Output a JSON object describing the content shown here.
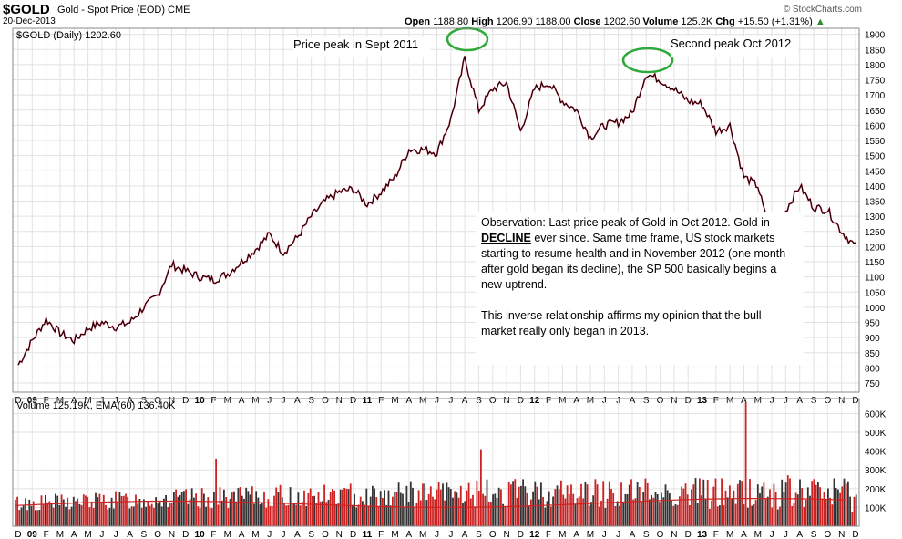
{
  "header": {
    "symbol": "$GOLD",
    "name": "Gold - Spot Price (EOD)",
    "exchange": "CME",
    "date": "20-Dec-2013",
    "open_label": "Open",
    "open": "1188.80",
    "high_label": "High",
    "high": "1206.90",
    "low": "1188.00",
    "close_label": "Close",
    "close": "1202.60",
    "volume_label": "Volume",
    "volume": "125.2K",
    "chg_label": "Chg",
    "chg": "+15.50 (+1.31%)",
    "brand": "© StockCharts.com",
    "up_color": "#2e8b2e"
  },
  "price_legend": "$GOLD (Daily) 1202.60",
  "volume_legend": "Volume 125.19K, EMA(60) 136.40K",
  "annotations": {
    "peak1": "Price peak in Sept 2011",
    "peak2": "Second peak Oct 2012",
    "obs_p1_a": "Observation:  Last price peak of Gold in Oct 2012.  Gold in",
    "obs_p1_b": "DECLINE",
    "obs_p1_c": "ever since.  Same time frame, US stock markets starting to resume health and in November 2012 (one month after gold began its decline), the SP 500 basically begins a new uptrend.",
    "obs_p2": "This inverse relationship affirms my opinion that the bull market really only began in 2013.",
    "highlight_color": "#2eaa3a"
  },
  "chart_data": [
    {
      "type": "line",
      "title": "$GOLD (Daily) 1202.60",
      "x_axis_labels": [
        "D",
        "09",
        "F",
        "M",
        "A",
        "M",
        "J",
        "J",
        "A",
        "S",
        "O",
        "N",
        "D",
        "10",
        "F",
        "M",
        "A",
        "M",
        "J",
        "J",
        "A",
        "S",
        "O",
        "N",
        "D",
        "11",
        "F",
        "M",
        "A",
        "M",
        "J",
        "J",
        "A",
        "S",
        "O",
        "N",
        "D",
        "12",
        "F",
        "M",
        "A",
        "M",
        "J",
        "J",
        "A",
        "S",
        "O",
        "N",
        "D",
        "13",
        "F",
        "M",
        "A",
        "M",
        "J",
        "J",
        "A",
        "S",
        "O",
        "N",
        "D"
      ],
      "y_ticks": [
        750,
        800,
        850,
        900,
        950,
        1000,
        1050,
        1100,
        1150,
        1200,
        1250,
        1300,
        1350,
        1400,
        1450,
        1500,
        1550,
        1600,
        1650,
        1700,
        1750,
        1800,
        1850,
        1900
      ],
      "ylim": [
        720,
        1920
      ],
      "x": [
        "2008-12",
        "2009-01",
        "2009-02",
        "2009-03",
        "2009-04",
        "2009-05",
        "2009-06",
        "2009-07",
        "2009-08",
        "2009-09",
        "2009-10",
        "2009-11",
        "2009-12",
        "2010-01",
        "2010-02",
        "2010-03",
        "2010-04",
        "2010-05",
        "2010-06",
        "2010-07",
        "2010-08",
        "2010-09",
        "2010-10",
        "2010-11",
        "2010-12",
        "2011-01",
        "2011-02",
        "2011-03",
        "2011-04",
        "2011-05",
        "2011-06",
        "2011-07",
        "2011-08",
        "2011-09",
        "2011-10",
        "2011-11",
        "2011-12",
        "2012-01",
        "2012-02",
        "2012-03",
        "2012-04",
        "2012-05",
        "2012-06",
        "2012-07",
        "2012-08",
        "2012-09",
        "2012-10",
        "2012-11",
        "2012-12",
        "2013-01",
        "2013-02",
        "2013-03",
        "2013-04",
        "2013-05",
        "2013-06",
        "2013-07",
        "2013-08",
        "2013-09",
        "2013-10",
        "2013-11",
        "2013-12"
      ],
      "values": [
        810,
        890,
        960,
        915,
        890,
        930,
        950,
        935,
        950,
        1000,
        1040,
        1140,
        1120,
        1100,
        1090,
        1110,
        1150,
        1190,
        1240,
        1180,
        1230,
        1300,
        1350,
        1380,
        1390,
        1340,
        1380,
        1430,
        1520,
        1520,
        1510,
        1620,
        1820,
        1650,
        1720,
        1740,
        1580,
        1720,
        1740,
        1680,
        1650,
        1560,
        1600,
        1610,
        1640,
        1770,
        1750,
        1720,
        1680,
        1670,
        1580,
        1600,
        1430,
        1400,
        1220,
        1320,
        1400,
        1330,
        1320,
        1250,
        1200
      ],
      "color": "#000000",
      "down_color": "#b0112a"
    },
    {
      "type": "bar",
      "title": "Volume 125.19K, EMA(60) 136.40K",
      "y_ticks": [
        "100K",
        "200K",
        "300K",
        "400K",
        "500K",
        "600K"
      ],
      "ylim": [
        0,
        680000
      ],
      "ema_color": "#cc2222",
      "bar_colors": [
        "#cc2222",
        "#333333"
      ],
      "notable_spikes": [
        {
          "x": "2010-02",
          "value": 360000
        },
        {
          "x": "2011-09",
          "value": 410000
        },
        {
          "x": "2013-04",
          "value": 660000
        }
      ]
    }
  ]
}
